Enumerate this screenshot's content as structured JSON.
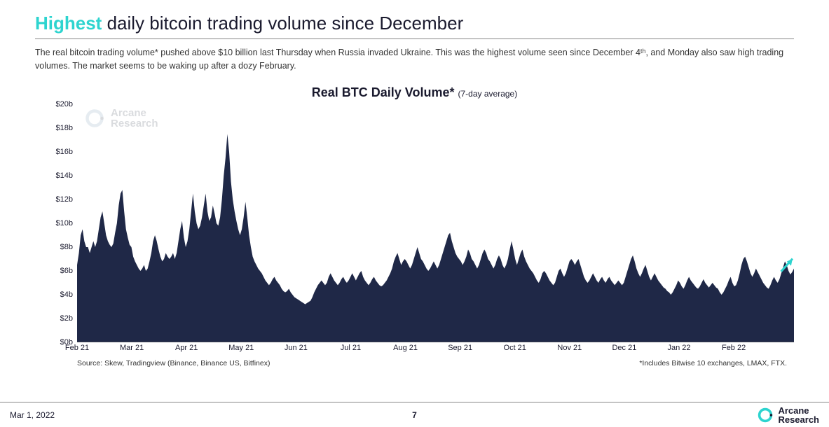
{
  "headline": {
    "accent": "Highest",
    "rest": " daily bitcoin trading volume since December"
  },
  "description": "The real bitcoin trading volume* pushed above $10 billion last Thursday when Russia invaded Ukraine. This was the highest volume seen since December 4ᵗʰ, and Monday also saw high trading volumes. The market seems to be waking up after a dozy February.",
  "chart": {
    "type": "area",
    "title_main": "Real BTC Daily Volume*",
    "title_sub": "(7-day average)",
    "watermark_line1": "Arcane",
    "watermark_line2": "Research",
    "fill_color": "#1f2847",
    "arrow_color": "#2dd4cf",
    "background_color": "#ffffff",
    "ylim": [
      0,
      20
    ],
    "ytick_step": 2,
    "y_ticks": [
      {
        "value": 0,
        "label": "$0b"
      },
      {
        "value": 2,
        "label": "$2b"
      },
      {
        "value": 4,
        "label": "$4b"
      },
      {
        "value": 6,
        "label": "$6b"
      },
      {
        "value": 8,
        "label": "$8b"
      },
      {
        "value": 10,
        "label": "$10b"
      },
      {
        "value": 12,
        "label": "$12b"
      },
      {
        "value": 14,
        "label": "$14b"
      },
      {
        "value": 16,
        "label": "$16b"
      },
      {
        "value": 18,
        "label": "$18b"
      },
      {
        "value": 20,
        "label": "$20b"
      }
    ],
    "x_labels": [
      "Feb 21",
      "Mar 21",
      "Apr 21",
      "May 21",
      "Jun 21",
      "Jul 21",
      "Aug 21",
      "Sep 21",
      "Oct 21",
      "Nov 21",
      "Dec 21",
      "Jan 22",
      "Feb 22"
    ],
    "x_range_days": 395,
    "series": [
      6.5,
      7.5,
      9.0,
      9.5,
      8.5,
      8.0,
      8.0,
      7.5,
      8.0,
      8.5,
      8.0,
      8.5,
      9.5,
      10.5,
      11.0,
      10.0,
      9.0,
      8.5,
      8.2,
      8.0,
      8.3,
      9.2,
      10.0,
      11.5,
      12.5,
      12.8,
      11.0,
      9.5,
      8.8,
      8.2,
      8.0,
      7.2,
      6.8,
      6.5,
      6.2,
      6.0,
      6.2,
      6.5,
      6.0,
      6.2,
      6.8,
      7.5,
      8.5,
      9.0,
      8.5,
      7.8,
      7.2,
      6.8,
      7.0,
      7.5,
      7.2,
      7.0,
      7.2,
      7.5,
      7.0,
      7.5,
      8.5,
      9.5,
      10.2,
      8.8,
      8.0,
      8.5,
      9.5,
      11.0,
      12.5,
      11.0,
      10.0,
      9.5,
      9.8,
      10.5,
      11.5,
      12.5,
      11.0,
      10.2,
      10.5,
      11.5,
      10.8,
      10.0,
      9.8,
      10.5,
      12.0,
      14.0,
      15.5,
      17.5,
      16.0,
      13.5,
      12.0,
      11.0,
      10.2,
      9.5,
      9.0,
      9.5,
      10.5,
      11.8,
      10.5,
      9.0,
      8.0,
      7.2,
      6.8,
      6.5,
      6.2,
      6.0,
      5.8,
      5.5,
      5.2,
      5.0,
      4.8,
      5.0,
      5.3,
      5.5,
      5.2,
      5.0,
      4.8,
      4.5,
      4.3,
      4.2,
      4.3,
      4.5,
      4.2,
      4.0,
      3.8,
      3.7,
      3.6,
      3.5,
      3.4,
      3.3,
      3.2,
      3.3,
      3.4,
      3.5,
      3.8,
      4.2,
      4.5,
      4.8,
      5.0,
      5.2,
      5.0,
      4.8,
      5.0,
      5.5,
      5.8,
      5.5,
      5.2,
      5.0,
      4.8,
      5.0,
      5.3,
      5.5,
      5.2,
      5.0,
      5.2,
      5.5,
      5.8,
      5.5,
      5.2,
      5.5,
      5.8,
      6.0,
      5.5,
      5.2,
      5.0,
      4.8,
      5.0,
      5.3,
      5.5,
      5.2,
      5.0,
      4.8,
      4.7,
      4.8,
      5.0,
      5.2,
      5.5,
      5.8,
      6.2,
      6.8,
      7.2,
      7.5,
      7.0,
      6.5,
      6.8,
      7.0,
      6.8,
      6.5,
      6.2,
      6.5,
      7.0,
      7.5,
      8.0,
      7.5,
      7.0,
      6.8,
      6.5,
      6.2,
      6.0,
      6.2,
      6.5,
      6.8,
      6.5,
      6.2,
      6.5,
      7.0,
      7.5,
      8.0,
      8.5,
      9.0,
      9.2,
      8.5,
      8.0,
      7.5,
      7.2,
      7.0,
      6.8,
      6.5,
      6.8,
      7.2,
      7.8,
      7.5,
      7.0,
      6.8,
      6.5,
      6.2,
      6.5,
      7.0,
      7.5,
      7.8,
      7.5,
      7.0,
      6.8,
      6.5,
      6.2,
      6.5,
      7.0,
      7.3,
      7.0,
      6.5,
      6.2,
      6.5,
      7.0,
      7.8,
      8.5,
      7.8,
      7.0,
      6.5,
      7.0,
      7.5,
      7.8,
      7.2,
      6.8,
      6.5,
      6.2,
      6.0,
      5.8,
      5.5,
      5.2,
      5.0,
      5.3,
      5.8,
      6.0,
      5.8,
      5.5,
      5.2,
      5.0,
      4.8,
      5.0,
      5.5,
      6.0,
      6.2,
      5.8,
      5.5,
      5.8,
      6.3,
      6.8,
      7.0,
      6.8,
      6.5,
      6.8,
      7.0,
      6.5,
      6.0,
      5.5,
      5.2,
      5.0,
      5.2,
      5.5,
      5.8,
      5.5,
      5.2,
      5.0,
      5.3,
      5.5,
      5.2,
      5.0,
      5.3,
      5.5,
      5.2,
      5.0,
      4.8,
      5.0,
      5.2,
      5.0,
      4.8,
      5.0,
      5.5,
      6.0,
      6.5,
      7.0,
      7.3,
      6.8,
      6.2,
      5.8,
      5.5,
      5.8,
      6.2,
      6.5,
      6.0,
      5.5,
      5.2,
      5.5,
      5.8,
      5.5,
      5.2,
      5.0,
      4.8,
      4.6,
      4.5,
      4.3,
      4.2,
      4.0,
      4.2,
      4.5,
      4.8,
      5.2,
      5.0,
      4.7,
      4.5,
      4.8,
      5.2,
      5.5,
      5.2,
      5.0,
      4.8,
      4.6,
      4.5,
      4.7,
      5.0,
      5.3,
      5.0,
      4.8,
      4.6,
      4.8,
      5.0,
      4.8,
      4.6,
      4.5,
      4.2,
      4.0,
      4.2,
      4.5,
      4.8,
      5.2,
      5.5,
      5.0,
      4.7,
      4.8,
      5.2,
      5.8,
      6.5,
      7.0,
      7.2,
      6.8,
      6.3,
      5.8,
      5.5,
      5.8,
      6.2,
      5.9,
      5.6,
      5.3,
      5.0,
      4.8,
      4.6,
      4.5,
      4.8,
      5.2,
      5.5,
      5.2,
      5.0,
      5.3,
      5.8,
      6.3,
      6.8,
      6.5,
      6.0,
      5.7,
      5.9,
      6.2
    ],
    "source_text": "Source: Skew, Tradingview (Binance, Binance US, Bitfinex)",
    "includes_text": "*Includes Bitwise 10 exchanges, LMAX, FTX."
  },
  "footer": {
    "date": "Mar 1, 2022",
    "page": "7",
    "logo_line1": "Arcane",
    "logo_line2": "Research",
    "logo_ring_color": "#2dd4cf",
    "logo_dot_color": "#1a1a2e"
  }
}
